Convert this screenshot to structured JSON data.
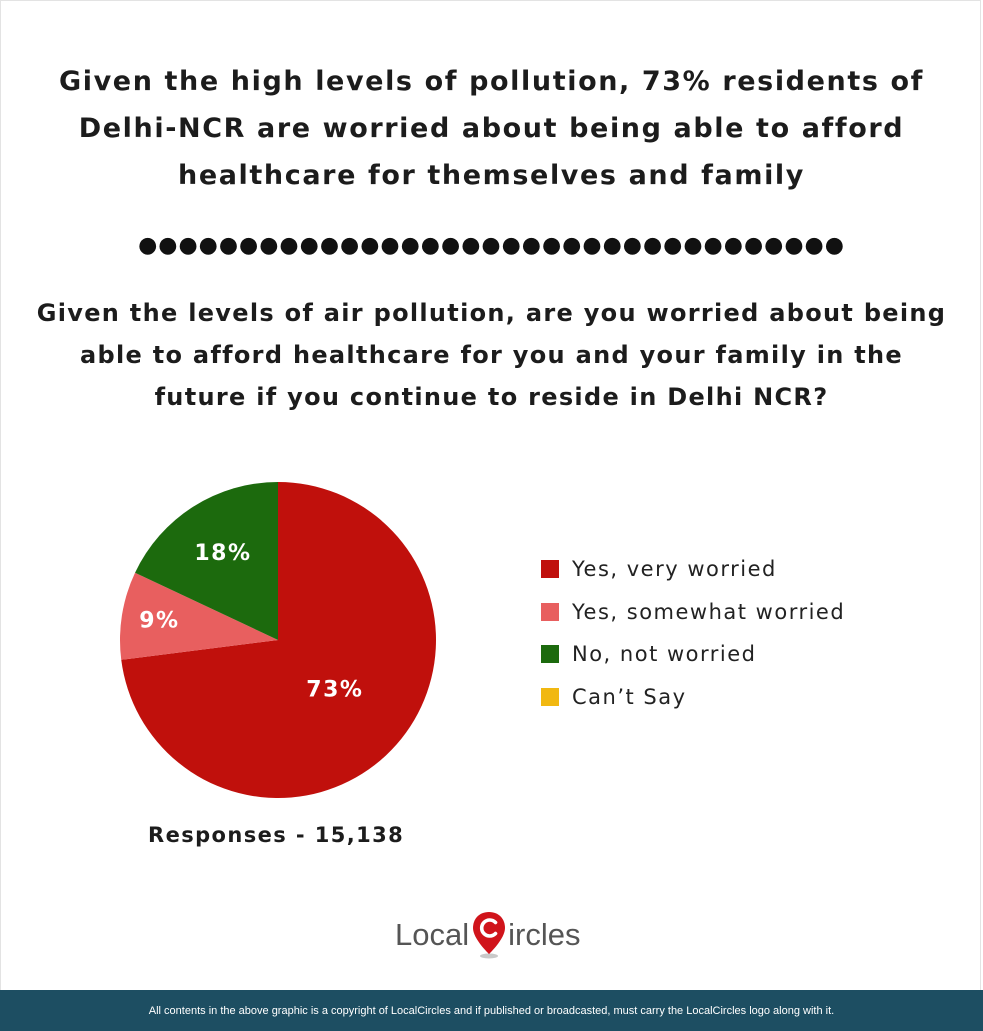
{
  "headline": "Given the high levels of pollution, 73% residents of Delhi-NCR are worried about being able to afford healthcare for themselves and family",
  "divider": "●●●●●●●●●●●●●●●●●●●●●●●●●●●●●●●●●●●",
  "question": "Given the levels of air pollution, are you worried about being able to afford healthcare for you and your family in the future if you continue to reside in Delhi NCR?",
  "responses": "Responses - 15,138",
  "logo": {
    "text_before": "Local",
    "text_after": "ircles",
    "icon": "map-pin-c-icon"
  },
  "footer": "All contents in the above graphic is a copyright of LocalCircles and if published or broadcasted, must carry the LocalCircles logo along with it.",
  "chart_data": {
    "type": "pie",
    "title": "",
    "legend_position": "right",
    "slices": [
      {
        "name": "Yes, very worried",
        "value": 73,
        "label": "73%",
        "color": "#c0100c"
      },
      {
        "name": "Yes, somewhat worried",
        "value": 9,
        "label": "9%",
        "color": "#e85f5f"
      },
      {
        "name": "No, not worried",
        "value": 18,
        "label": "18%",
        "color": "#1c6a0d"
      },
      {
        "name": "Can’t Say",
        "value": 0,
        "label": "",
        "color": "#f1b811"
      }
    ]
  }
}
